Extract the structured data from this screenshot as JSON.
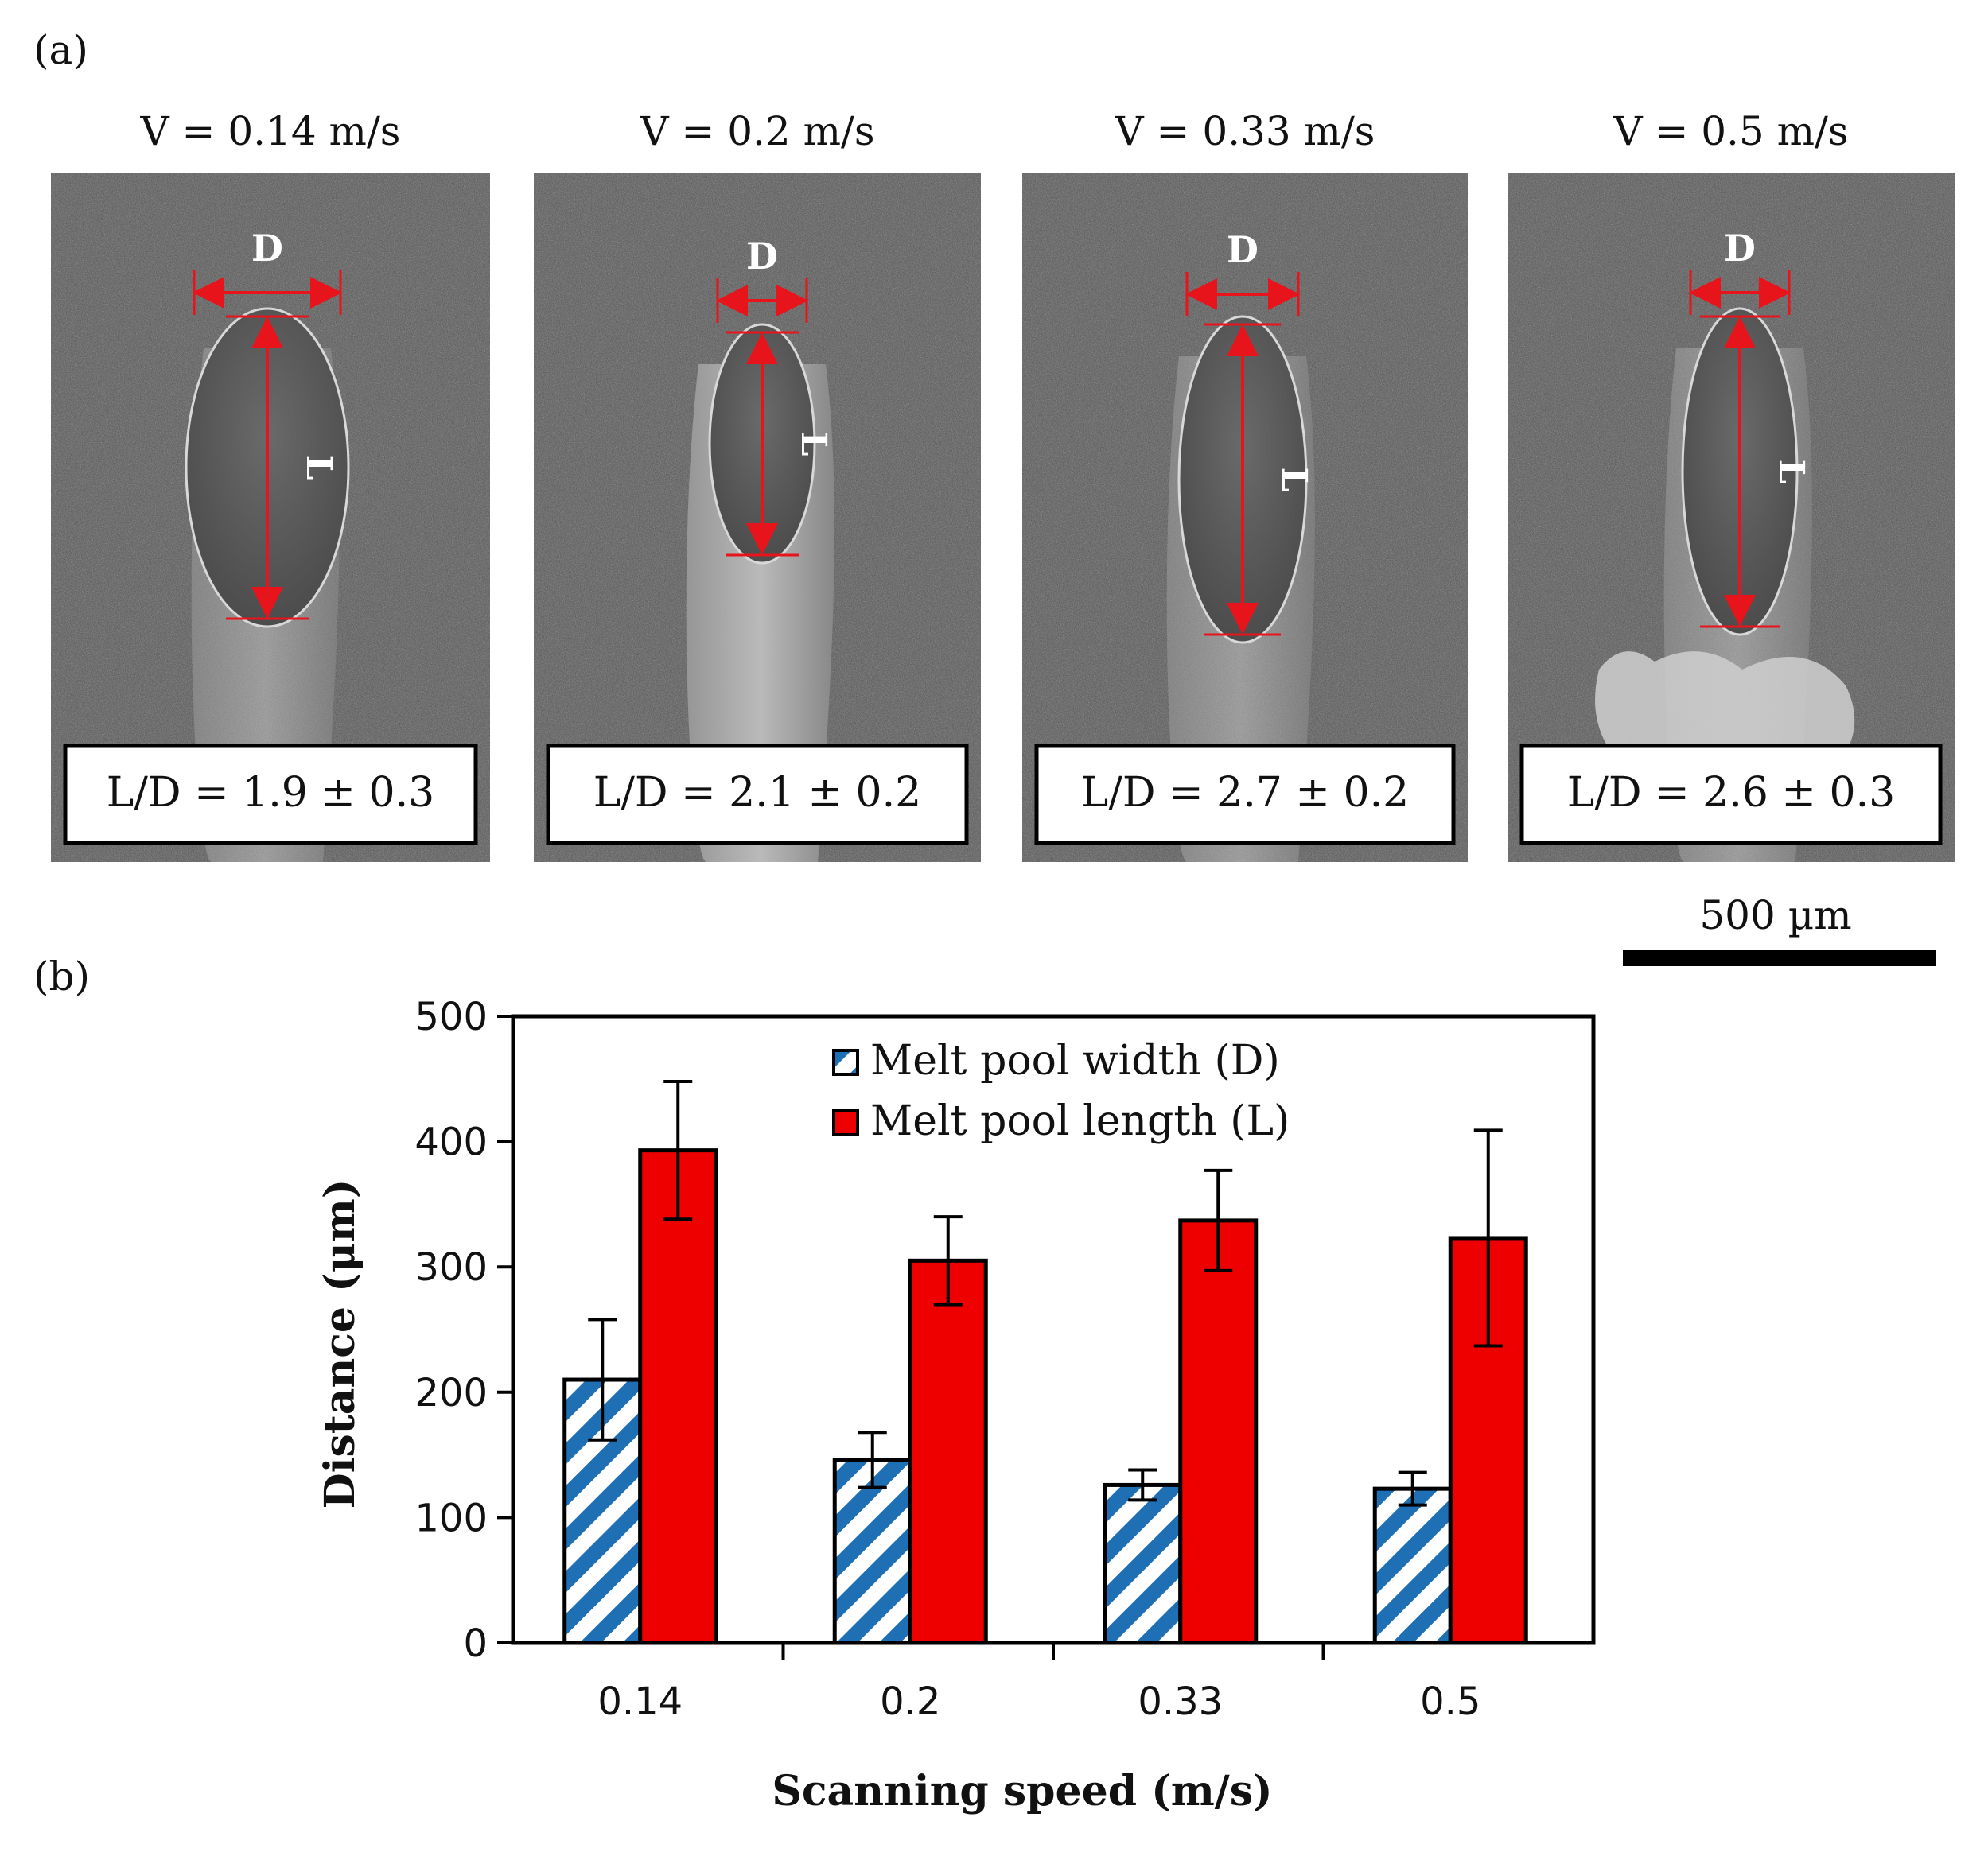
{
  "panel_a": {
    "label": "(a)",
    "panels": [
      {
        "speed_label": "V = 0.14 m/s",
        "ratio_label": "L/D = 1.9 ± 0.3",
        "d_label": "D",
        "l_label": "L",
        "variant": "v014"
      },
      {
        "speed_label": "V = 0.2 m/s",
        "ratio_label": "L/D = 2.1 ± 0.2",
        "d_label": "D",
        "l_label": "L",
        "variant": "v02"
      },
      {
        "speed_label": "V = 0.33 m/s",
        "ratio_label": "L/D = 2.7 ± 0.2",
        "d_label": "D",
        "l_label": "L",
        "variant": "v033"
      },
      {
        "speed_label": "V = 0.5 m/s",
        "ratio_label": "L/D = 2.6 ± 0.3",
        "d_label": "D",
        "l_label": "L",
        "variant": "v05"
      }
    ],
    "scale_bar_label": "500 µm"
  },
  "panel_b": {
    "label": "(b)"
  },
  "colors": {
    "length_bar": "#ee0000",
    "width_hatch": "#1f6fb4",
    "annotation": "#e8141b",
    "micrograph_bg": "#555555"
  },
  "chart_data": {
    "type": "bar",
    "categories": [
      "0.14",
      "0.2",
      "0.33",
      "0.5"
    ],
    "series": [
      {
        "name": "Melt pool width (D)",
        "values": [
          210,
          146,
          126,
          123
        ],
        "errors": [
          48,
          22,
          12,
          13
        ],
        "fill": "hatch"
      },
      {
        "name": "Melt pool length (L)",
        "values": [
          393,
          305,
          337,
          323
        ],
        "errors": [
          55,
          35,
          40,
          86
        ],
        "fill": "solid"
      }
    ],
    "xlabel": "Scanning speed (m/s)",
    "ylabel": "Distance (μm)",
    "ylim": [
      0,
      500
    ],
    "yticks": [
      0,
      100,
      200,
      300,
      400,
      500
    ],
    "grid": false,
    "legend_position": "top-center"
  }
}
